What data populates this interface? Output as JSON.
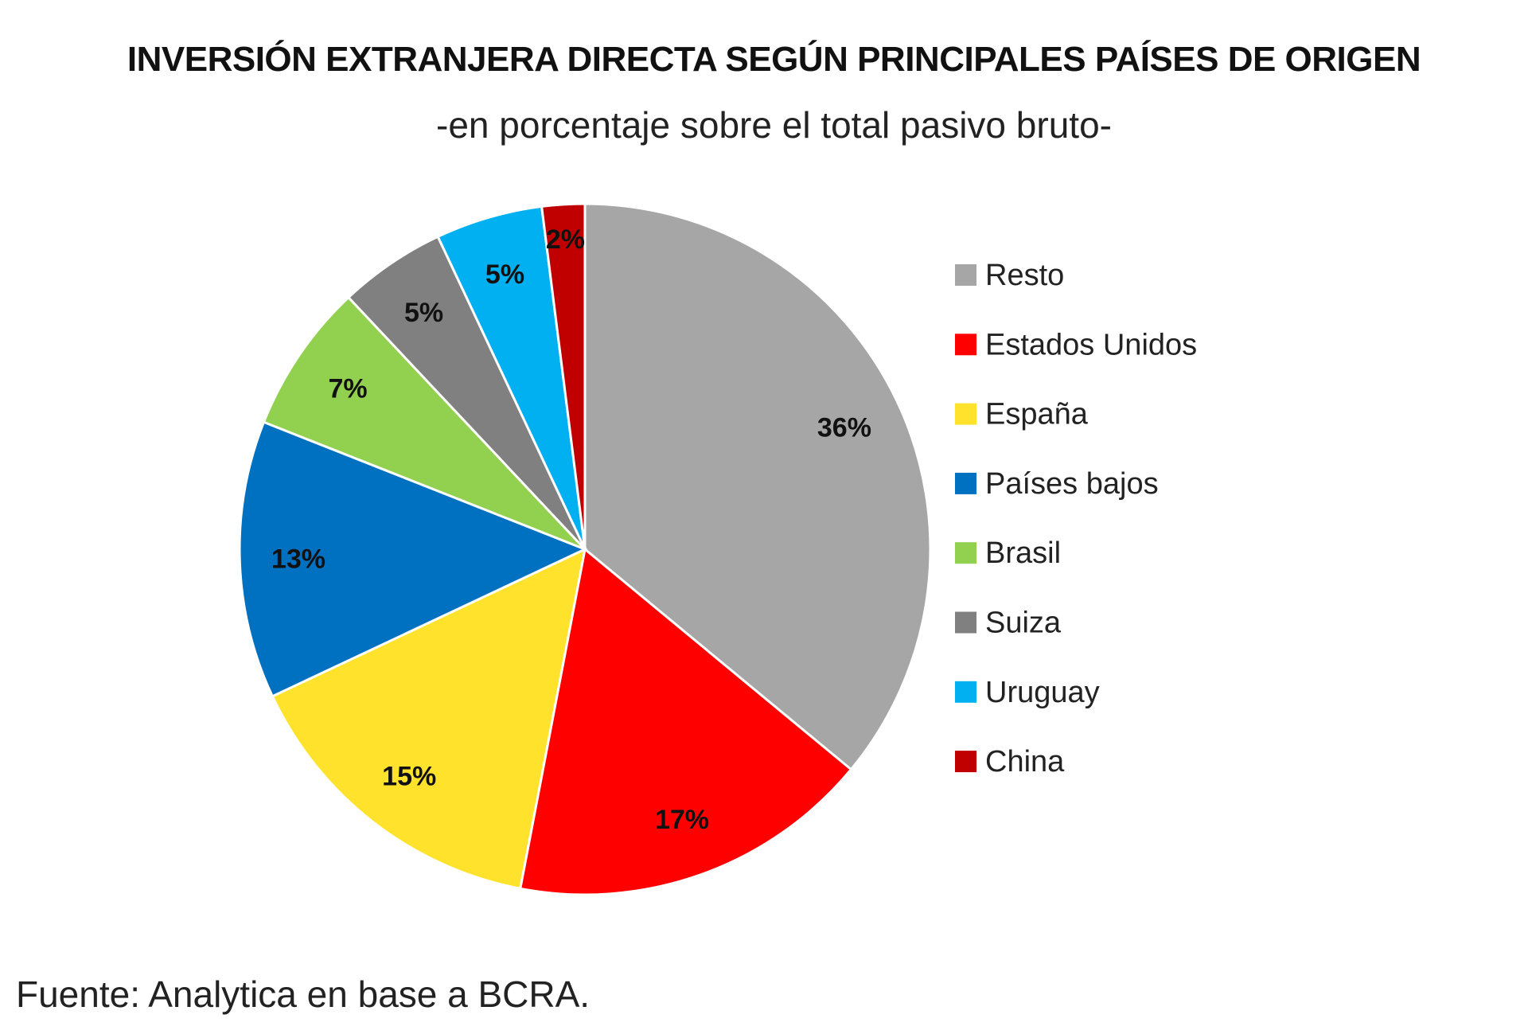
{
  "chart_data": {
    "type": "pie",
    "title": "INVERSIÓN EXTRANJERA DIRECTA SEGÚN PRINCIPALES PAÍSES DE ORIGEN",
    "subtitle": "-en porcentaje sobre el total pasivo bruto-",
    "source": "Fuente: Analytica en base a BCRA.",
    "legend_position": "right",
    "start": "top, clockwise",
    "slices": [
      {
        "name": "Resto",
        "value": 36,
        "label": "36%",
        "color": "#A6A6A6"
      },
      {
        "name": "Estados Unidos",
        "value": 17,
        "label": "17%",
        "color": "#FF0000"
      },
      {
        "name": "España",
        "value": 15,
        "label": "15%",
        "color": "#FFE22B"
      },
      {
        "name": "Países bajos",
        "value": 13,
        "label": "13%",
        "color": "#0070C0"
      },
      {
        "name": "Brasil",
        "value": 7,
        "label": "7%",
        "color": "#92D050"
      },
      {
        "name": "Suiza",
        "value": 5,
        "label": "5%",
        "color": "#808080"
      },
      {
        "name": "Uruguay",
        "value": 5,
        "label": "5%",
        "color": "#00B0F0"
      },
      {
        "name": "China",
        "value": 2,
        "label": "2%",
        "color": "#C00000"
      }
    ]
  }
}
